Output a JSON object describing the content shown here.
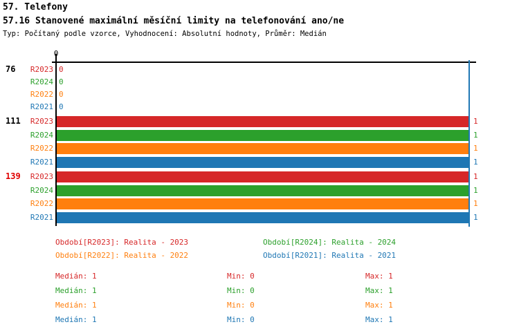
{
  "header": {
    "title": "57. Telefony",
    "subtitle": "57.16 Stanovené maximální měsíční limity na telefonování ano/ne",
    "meta": "Typ: Počítaný podle vzorce, Vyhodnocení: Absolutní hodnoty, Průměr: Medián"
  },
  "highlight_color": "#e00000",
  "chart_data": {
    "type": "bar",
    "orientation": "horizontal",
    "title": "57.16 Stanovené maximální měsíční limity na telefonování ano/ne",
    "xlabel": "",
    "ylabel": "",
    "xlim": [
      0,
      1
    ],
    "x_ticks": [
      "0"
    ],
    "grid": false,
    "reference_line_x": 1,
    "reference_line_color": "#1f77b4",
    "series_order": [
      "R2023",
      "R2024",
      "R2022",
      "R2021"
    ],
    "series_colors": {
      "R2023": "#d62728",
      "R2024": "#2ca02c",
      "R2022": "#ff7f0e",
      "R2021": "#1f77b4"
    },
    "groups": [
      {
        "label": "76",
        "highlighted": false,
        "values": [
          0,
          0,
          0,
          0
        ]
      },
      {
        "label": "111",
        "highlighted": false,
        "values": [
          1,
          1,
          1,
          1
        ]
      },
      {
        "label": "139",
        "highlighted": true,
        "values": [
          1,
          1,
          1,
          1
        ]
      }
    ]
  },
  "legend": {
    "items": [
      {
        "series": "R2023",
        "label": "Období[R2023]: Realita - 2023",
        "color": "#d62728"
      },
      {
        "series": "R2024",
        "label": "Období[R2024]: Realita - 2024",
        "color": "#2ca02c"
      },
      {
        "series": "R2022",
        "label": "Období[R2022]: Realita - 2022",
        "color": "#ff7f0e"
      },
      {
        "series": "R2021",
        "label": "Období[R2021]: Realita - 2021",
        "color": "#1f77b4"
      }
    ]
  },
  "stats": {
    "median_label": "Medián",
    "min_label": "Min",
    "max_label": "Max",
    "rows": [
      {
        "series": "R2023",
        "median": "1",
        "min": "0",
        "max": "1"
      },
      {
        "series": "R2024",
        "median": "1",
        "min": "0",
        "max": "1"
      },
      {
        "series": "R2022",
        "median": "1",
        "min": "0",
        "max": "1"
      },
      {
        "series": "R2021",
        "median": "1",
        "min": "0",
        "max": "1"
      }
    ]
  }
}
